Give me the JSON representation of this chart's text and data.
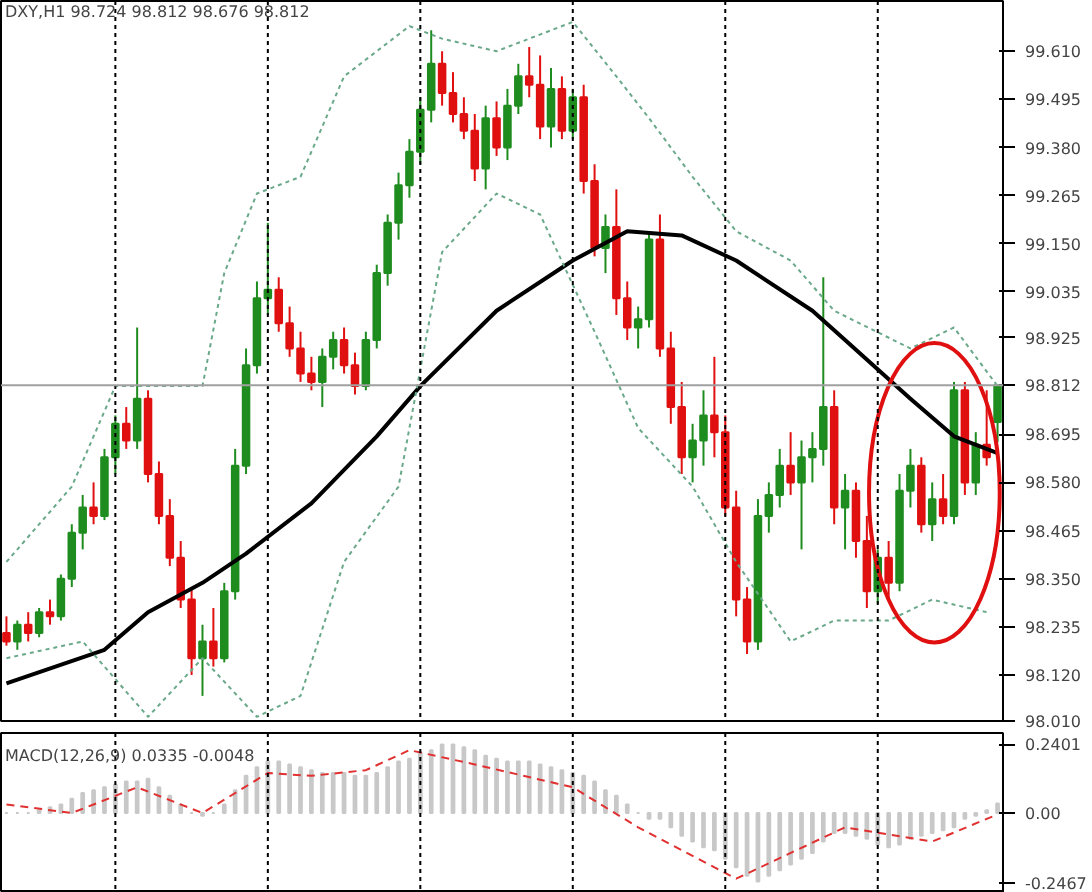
{
  "chart_data": [
    {
      "type": "candlestick",
      "title": "DXY,H1  98.724 98.812 98.676 98.812",
      "categories": [
        null,
        null,
        null,
        null,
        null,
        null,
        null,
        null,
        null,
        null,
        null,
        null,
        null,
        null,
        null,
        null,
        null,
        null,
        null,
        null,
        null,
        null,
        null,
        null,
        null,
        null,
        null,
        null,
        null,
        null,
        null,
        null,
        null,
        null,
        null,
        null,
        null,
        null,
        null,
        null,
        null,
        null,
        null,
        null,
        null,
        null,
        null,
        null,
        null,
        null,
        null,
        null,
        null,
        null,
        null,
        null,
        null,
        null,
        null,
        null,
        null,
        null,
        null,
        null,
        null,
        null,
        null,
        null,
        null,
        null,
        null,
        null,
        null,
        null,
        null,
        null,
        null,
        null,
        null,
        null,
        null,
        null,
        null,
        null,
        null,
        null,
        null,
        null,
        null,
        null,
        null,
        null
      ],
      "ohlc": [
        [
          98.22,
          98.26,
          98.19,
          98.2
        ],
        [
          98.2,
          98.25,
          98.18,
          98.24
        ],
        [
          98.24,
          98.27,
          98.2,
          98.22
        ],
        [
          98.22,
          98.28,
          98.21,
          98.27
        ],
        [
          98.27,
          98.3,
          98.24,
          98.26
        ],
        [
          98.26,
          98.36,
          98.25,
          98.35
        ],
        [
          98.35,
          98.48,
          98.33,
          98.46
        ],
        [
          98.46,
          98.55,
          98.42,
          98.52
        ],
        [
          98.52,
          98.58,
          98.48,
          98.5
        ],
        [
          98.5,
          98.66,
          98.49,
          98.64
        ],
        [
          98.64,
          98.74,
          98.6,
          98.72
        ],
        [
          98.72,
          98.76,
          98.66,
          98.68
        ],
        [
          98.68,
          98.95,
          98.66,
          98.78
        ],
        [
          98.78,
          98.8,
          98.58,
          98.6
        ],
        [
          98.6,
          98.63,
          98.48,
          98.5
        ],
        [
          98.5,
          98.54,
          98.38,
          98.4
        ],
        [
          98.4,
          98.44,
          98.28,
          98.3
        ],
        [
          98.3,
          98.33,
          98.12,
          98.16
        ],
        [
          98.16,
          98.24,
          98.07,
          98.2
        ],
        [
          98.2,
          98.28,
          98.14,
          98.16
        ],
        [
          98.16,
          98.34,
          98.15,
          98.32
        ],
        [
          98.32,
          98.66,
          98.3,
          98.62
        ],
        [
          98.62,
          98.9,
          98.6,
          98.86
        ],
        [
          98.86,
          99.06,
          98.84,
          99.02
        ],
        [
          99.02,
          99.2,
          98.98,
          99.04
        ],
        [
          99.04,
          99.07,
          98.94,
          98.96
        ],
        [
          98.96,
          99.0,
          98.88,
          98.9
        ],
        [
          98.9,
          98.94,
          98.82,
          98.84
        ],
        [
          98.84,
          98.88,
          98.8,
          98.82
        ],
        [
          98.82,
          98.9,
          98.76,
          98.88
        ],
        [
          98.88,
          98.94,
          98.85,
          98.92
        ],
        [
          98.92,
          98.95,
          98.84,
          98.86
        ],
        [
          98.86,
          98.89,
          98.79,
          98.81
        ],
        [
          98.81,
          98.94,
          98.8,
          98.92
        ],
        [
          98.92,
          99.1,
          98.9,
          99.08
        ],
        [
          99.08,
          99.22,
          99.05,
          99.2
        ],
        [
          99.2,
          99.32,
          99.16,
          99.29
        ],
        [
          99.29,
          99.4,
          99.26,
          99.37
        ],
        [
          99.37,
          99.5,
          99.34,
          99.47
        ],
        [
          99.47,
          99.66,
          99.44,
          99.58
        ],
        [
          99.58,
          99.61,
          99.48,
          99.51
        ],
        [
          99.51,
          99.56,
          99.44,
          99.46
        ],
        [
          99.46,
          99.5,
          99.4,
          99.42
        ],
        [
          99.42,
          99.46,
          99.3,
          99.33
        ],
        [
          99.33,
          99.48,
          99.28,
          99.45
        ],
        [
          99.45,
          99.49,
          99.36,
          99.38
        ],
        [
          99.38,
          99.52,
          99.35,
          99.48
        ],
        [
          99.48,
          99.58,
          99.46,
          99.55
        ],
        [
          99.55,
          99.62,
          99.5,
          99.53
        ],
        [
          99.53,
          99.6,
          99.4,
          99.43
        ],
        [
          99.43,
          99.57,
          99.38,
          99.52
        ],
        [
          99.52,
          99.55,
          99.4,
          99.42
        ],
        [
          99.42,
          99.52,
          99.4,
          99.5
        ],
        [
          99.5,
          99.53,
          99.27,
          99.3
        ],
        [
          99.3,
          99.34,
          99.12,
          99.14
        ],
        [
          99.14,
          99.22,
          99.08,
          99.19
        ],
        [
          99.19,
          99.28,
          98.98,
          99.02
        ],
        [
          99.02,
          99.06,
          98.92,
          98.95
        ],
        [
          98.95,
          99.0,
          98.9,
          98.97
        ],
        [
          98.97,
          99.18,
          98.95,
          99.16
        ],
        [
          99.16,
          99.22,
          98.88,
          98.9
        ],
        [
          98.9,
          98.94,
          98.72,
          98.76
        ],
        [
          98.76,
          98.82,
          98.6,
          98.64
        ],
        [
          98.64,
          98.72,
          98.58,
          98.68
        ],
        [
          98.68,
          98.8,
          98.62,
          98.74
        ],
        [
          98.74,
          98.88,
          98.64,
          98.7
        ],
        [
          98.7,
          98.74,
          98.5,
          98.52
        ],
        [
          98.52,
          98.56,
          98.26,
          98.3
        ],
        [
          98.3,
          98.33,
          98.17,
          98.2
        ],
        [
          98.2,
          98.54,
          98.18,
          98.5
        ],
        [
          98.5,
          98.58,
          98.46,
          98.55
        ],
        [
          98.55,
          98.66,
          98.52,
          98.62
        ],
        [
          98.62,
          98.7,
          98.55,
          98.58
        ],
        [
          98.58,
          98.68,
          98.42,
          98.64
        ],
        [
          98.64,
          98.7,
          98.58,
          98.66
        ],
        [
          98.66,
          99.07,
          98.62,
          98.76
        ],
        [
          98.76,
          98.8,
          98.48,
          98.52
        ],
        [
          98.52,
          98.6,
          98.42,
          98.56
        ],
        [
          98.56,
          98.58,
          98.4,
          98.44
        ],
        [
          98.44,
          98.5,
          98.28,
          98.32
        ],
        [
          98.32,
          98.42,
          98.29,
          98.4
        ],
        [
          98.4,
          98.44,
          98.3,
          98.34
        ],
        [
          98.34,
          98.6,
          98.32,
          98.56
        ],
        [
          98.56,
          98.66,
          98.52,
          98.62
        ],
        [
          98.62,
          98.64,
          98.46,
          98.48
        ],
        [
          98.48,
          98.58,
          98.44,
          98.54
        ],
        [
          98.54,
          98.6,
          98.48,
          98.5
        ],
        [
          98.5,
          98.82,
          98.48,
          98.8
        ],
        [
          98.8,
          98.82,
          98.55,
          98.58
        ],
        [
          98.58,
          98.7,
          98.55,
          98.67
        ],
        [
          98.67,
          98.8,
          98.62,
          98.64
        ],
        [
          98.724,
          98.812,
          98.676,
          98.812
        ]
      ],
      "series": [
        {
          "type": "line",
          "color": "#000000",
          "line_style": "solid",
          "values": [
            98.1,
            null,
            null,
            null,
            null,
            null,
            null,
            null,
            null,
            98.18,
            null,
            null,
            null,
            98.27,
            null,
            null,
            null,
            null,
            98.34,
            null,
            null,
            null,
            98.41,
            null,
            null,
            null,
            null,
            null,
            98.53,
            null,
            null,
            null,
            null,
            null,
            98.69,
            null,
            null,
            null,
            98.81,
            null,
            null,
            null,
            null,
            null,
            null,
            98.99,
            null,
            null,
            null,
            null,
            null,
            null,
            99.11,
            null,
            null,
            null,
            null,
            99.18,
            null,
            null,
            null,
            null,
            99.17,
            null,
            null,
            null,
            null,
            99.11,
            null,
            null,
            null,
            null,
            null,
            null,
            98.99,
            null,
            null,
            98.92,
            null,
            null,
            null,
            null,
            null,
            98.78,
            null,
            null,
            null,
            98.69,
            null,
            null,
            null,
            98.65
          ]
        },
        {
          "type": "line",
          "color": "#6aa88a",
          "line_style": "dotted",
          "values": [
            98.39,
            null,
            null,
            null,
            null,
            null,
            98.57,
            null,
            null,
            null,
            98.81,
            null,
            null,
            98.81,
            null,
            null,
            null,
            null,
            98.81,
            null,
            99.08,
            null,
            null,
            99.27,
            null,
            null,
            null,
            99.31,
            null,
            null,
            null,
            99.55,
            null,
            null,
            null,
            null,
            null,
            99.67,
            null,
            null,
            99.64,
            null,
            null,
            null,
            null,
            99.61,
            null,
            null,
            null,
            null,
            null,
            null,
            99.68,
            null,
            null,
            null,
            99.55,
            null,
            null,
            99.45,
            null,
            null,
            null,
            99.31,
            null,
            null,
            null,
            99.18,
            null,
            null,
            null,
            null,
            99.11,
            null,
            null,
            null,
            98.99,
            null,
            null,
            null,
            null,
            null,
            null,
            98.9,
            null,
            null,
            null,
            98.95,
            null,
            null,
            null,
            98.81
          ]
        },
        {
          "type": "line",
          "color": "#6aa88a",
          "line_style": "dotted",
          "values": [
            98.16,
            null,
            null,
            null,
            null,
            null,
            null,
            98.2,
            null,
            null,
            null,
            null,
            null,
            98.02,
            null,
            null,
            null,
            null,
            98.16,
            null,
            null,
            null,
            null,
            98.02,
            null,
            null,
            null,
            98.07,
            null,
            null,
            null,
            98.39,
            null,
            null,
            null,
            null,
            98.57,
            null,
            null,
            null,
            99.13,
            null,
            null,
            null,
            null,
            99.27,
            null,
            null,
            null,
            99.22,
            null,
            null,
            null,
            null,
            98.94,
            null,
            null,
            null,
            98.71,
            null,
            null,
            null,
            null,
            98.57,
            null,
            null,
            null,
            98.39,
            null,
            null,
            null,
            null,
            98.2,
            null,
            null,
            null,
            98.25,
            null,
            null,
            null,
            null,
            98.25,
            null,
            null,
            null,
            98.3,
            null,
            null,
            null,
            null,
            98.27,
            null
          ]
        }
      ],
      "ylim": [
        98.01,
        99.73
      ],
      "yticks": [
        {
          "value": 98.01,
          "label": "98.010"
        },
        {
          "value": 98.12,
          "label": "98.120"
        },
        {
          "value": 98.235,
          "label": "98.235"
        },
        {
          "value": 98.35,
          "label": "98.350"
        },
        {
          "value": 98.465,
          "label": "98.465"
        },
        {
          "value": 98.58,
          "label": "98.580"
        },
        {
          "value": 98.695,
          "label": "98.695"
        },
        {
          "value": 98.925,
          "label": "98.925"
        },
        {
          "value": 99.035,
          "label": "99.035"
        },
        {
          "value": 99.15,
          "label": "99.150"
        },
        {
          "value": 99.265,
          "label": "99.265"
        },
        {
          "value": 99.38,
          "label": "99.380"
        },
        {
          "value": 99.495,
          "label": "99.495"
        },
        {
          "value": 99.61,
          "label": "99.610"
        }
      ],
      "ref_lines": [
        {
          "axis": "y",
          "value": 98.812,
          "label": "98.812",
          "color": "#a0a0a0"
        }
      ],
      "tick_labels": "y",
      "grid": "x"
    },
    {
      "type": "bar",
      "title": "MACD(12,26,9) 0.0335 -0.0048",
      "categories": [
        null,
        null,
        null,
        null,
        null,
        null,
        null,
        null,
        null,
        null,
        null,
        null,
        null,
        null,
        null,
        null,
        null,
        null,
        null,
        null,
        null,
        null,
        null,
        null,
        null,
        null,
        null,
        null,
        null,
        null,
        null,
        null,
        null,
        null,
        null,
        null,
        null,
        null,
        null,
        null,
        null,
        null,
        null,
        null,
        null,
        null,
        null,
        null,
        null,
        null,
        null,
        null,
        null,
        null,
        null,
        null,
        null,
        null,
        null,
        null,
        null,
        null,
        null,
        null,
        null,
        null,
        null,
        null,
        null,
        null,
        null,
        null,
        null,
        null,
        null,
        null,
        null,
        null,
        null,
        null,
        null,
        null,
        null,
        null,
        null,
        null,
        null,
        null,
        null,
        null,
        null,
        null
      ],
      "values": [
        0.0,
        0.0,
        0.0,
        0.01,
        0.02,
        0.03,
        0.05,
        0.07,
        0.08,
        0.09,
        0.1,
        0.11,
        0.11,
        0.12,
        0.09,
        0.06,
        0.03,
        0.0,
        -0.01,
        0.0,
        0.03,
        0.08,
        0.13,
        0.16,
        0.18,
        0.18,
        0.17,
        0.16,
        0.15,
        0.14,
        0.14,
        0.14,
        0.13,
        0.13,
        0.14,
        0.16,
        0.18,
        0.19,
        0.21,
        0.22,
        0.24,
        0.24,
        0.23,
        0.22,
        0.2,
        0.19,
        0.18,
        0.18,
        0.18,
        0.17,
        0.16,
        0.15,
        0.14,
        0.13,
        0.11,
        0.08,
        0.06,
        0.03,
        0.0,
        -0.02,
        -0.02,
        -0.05,
        -0.08,
        -0.1,
        -0.12,
        -0.13,
        -0.16,
        -0.19,
        -0.22,
        -0.24,
        -0.22,
        -0.2,
        -0.18,
        -0.16,
        -0.14,
        -0.1,
        -0.07,
        -0.07,
        -0.08,
        -0.09,
        -0.11,
        -0.12,
        -0.11,
        -0.09,
        -0.08,
        -0.07,
        -0.06,
        -0.05,
        -0.02,
        -0.01,
        0.01,
        0.0335
      ],
      "color": "#c8c8c8",
      "series": [
        {
          "type": "line",
          "color": "#e03030",
          "line_style": "dashed",
          "values": [
            0.03,
            null,
            null,
            null,
            null,
            null,
            0.0,
            null,
            null,
            null,
            null,
            null,
            0.09,
            null,
            null,
            null,
            null,
            null,
            0.0,
            null,
            null,
            null,
            null,
            null,
            0.14,
            null,
            null,
            null,
            0.13,
            null,
            null,
            null,
            null,
            0.15,
            null,
            null,
            null,
            0.22,
            null,
            null,
            null,
            null,
            null,
            0.17,
            null,
            null,
            null,
            null,
            null,
            null,
            null,
            null,
            0.09,
            null,
            null,
            null,
            null,
            null,
            -0.05,
            null,
            null,
            null,
            null,
            null,
            null,
            null,
            null,
            -0.23,
            null,
            null,
            null,
            null,
            null,
            null,
            null,
            null,
            null,
            -0.05,
            null,
            null,
            null,
            null,
            null,
            null,
            null,
            -0.1,
            null,
            null,
            null,
            null,
            null,
            -0.0048
          ]
        }
      ],
      "ylim": [
        -0.28,
        0.28
      ],
      "yticks": [
        {
          "value": 0.2401,
          "label": "0.2401"
        },
        {
          "value": 0,
          "label": "0.00"
        },
        {
          "value": -0.2467,
          "label": "-0.2467"
        }
      ],
      "tick_labels": "y",
      "grid": "x"
    }
  ]
}
